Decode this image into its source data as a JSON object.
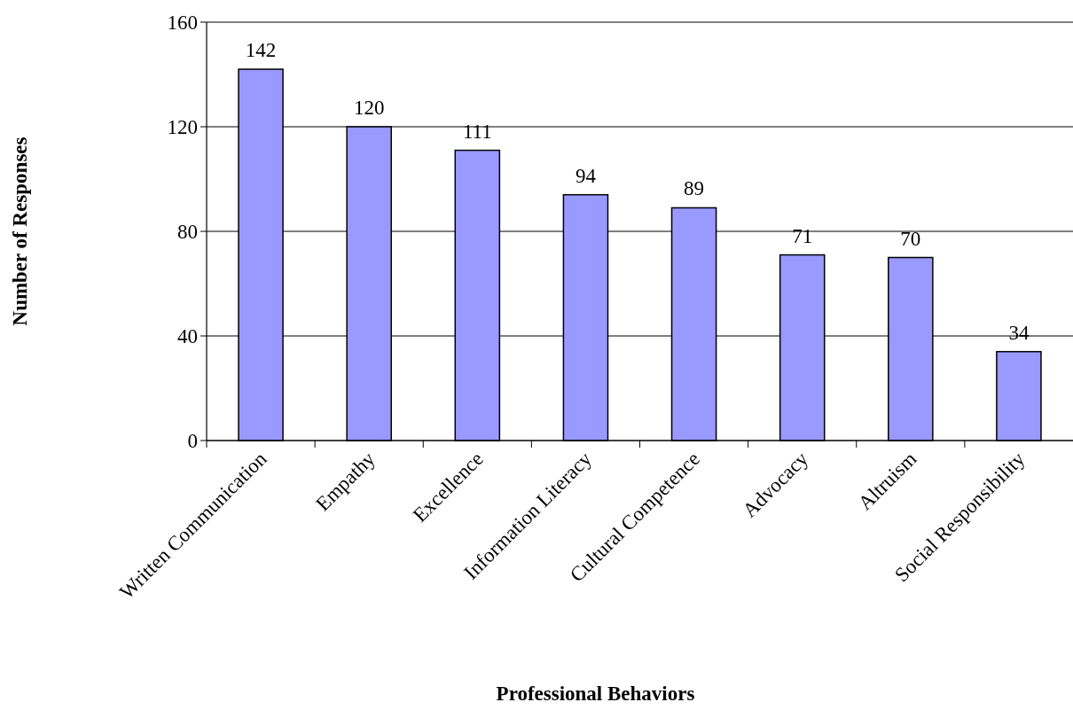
{
  "chart_data": {
    "type": "bar",
    "xlabel": "Professional Behaviors",
    "ylabel": "Number of Responses",
    "categories": [
      "Written Communication",
      "Empathy",
      "Excellence",
      "Information Literacy",
      "Cultural Competence",
      "Advocacy",
      "Altruism",
      "Social Responsibility"
    ],
    "values": [
      142,
      120,
      111,
      94,
      89,
      71,
      70,
      34
    ],
    "color": "#9999ff",
    "ylim": [
      0,
      160
    ],
    "yticks": [
      0,
      40,
      80,
      120,
      160
    ],
    "grid": "y",
    "data_labels": true
  }
}
